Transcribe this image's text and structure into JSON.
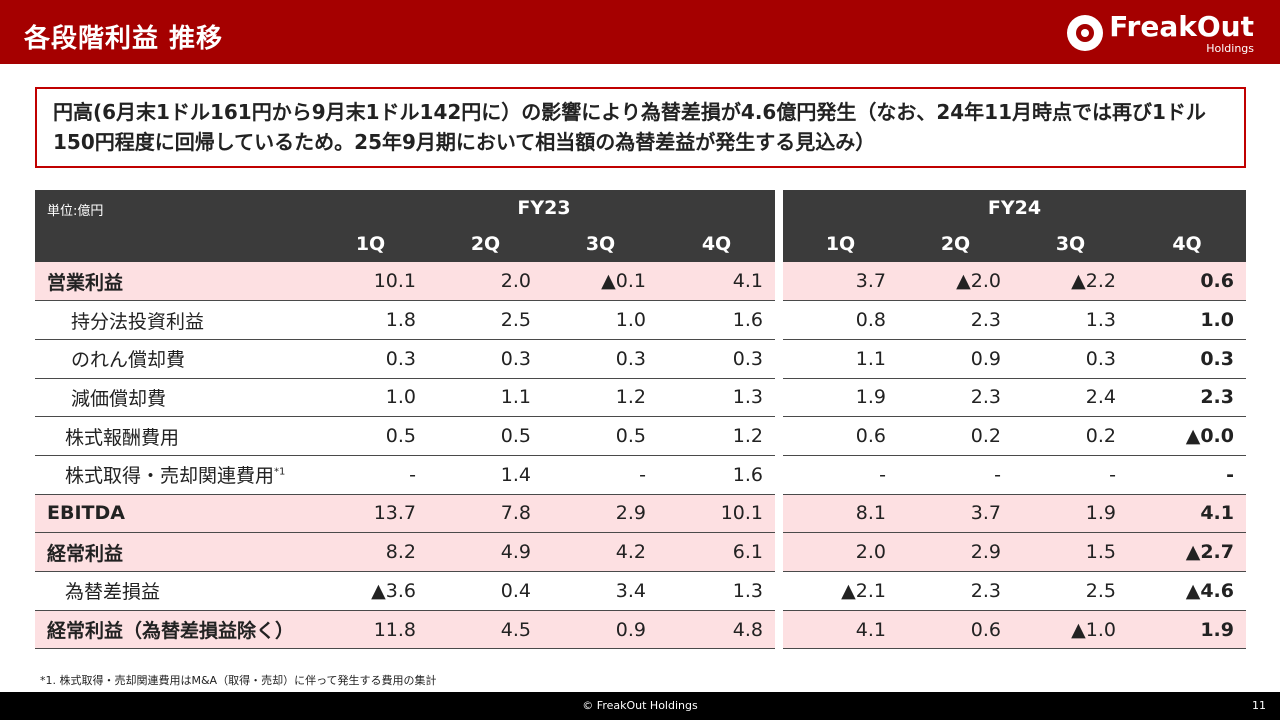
{
  "header": {
    "title": "各段階利益 推移"
  },
  "logo": {
    "name": "FreakOut",
    "sub": "Holdings"
  },
  "callout": {
    "text": "円高(6月末1ドル161円から9月末1ドル142円に）の影響により為替差損が4.6億円発生（なお、24年11月時点では再び1ドル150円程度に回帰しているため。25年9月期において相当額の為替差益が発生する見込み）"
  },
  "table": {
    "unit": "単位:億円",
    "fy23": "FY23",
    "fy24": "FY24",
    "quarters": [
      "1Q",
      "2Q",
      "3Q",
      "4Q"
    ],
    "rows": [
      {
        "label": "営業利益",
        "type": "main",
        "fy23": [
          "10.1",
          "2.0",
          "▲0.1",
          "4.1"
        ],
        "fy24": [
          "3.7",
          "▲2.0",
          "▲2.2",
          "0.6"
        ]
      },
      {
        "label": "持分法投資利益",
        "type": "sub",
        "fy23": [
          "1.8",
          "2.5",
          "1.0",
          "1.6"
        ],
        "fy24": [
          "0.8",
          "2.3",
          "1.3",
          "1.0"
        ]
      },
      {
        "label": "のれん償却費",
        "type": "sub",
        "fy23": [
          "0.3",
          "0.3",
          "0.3",
          "0.3"
        ],
        "fy24": [
          "1.1",
          "0.9",
          "0.3",
          "0.3"
        ]
      },
      {
        "label": "減価償却費",
        "type": "sub",
        "fy23": [
          "1.0",
          "1.1",
          "1.2",
          "1.3"
        ],
        "fy24": [
          "1.9",
          "2.3",
          "2.4",
          "2.3"
        ]
      },
      {
        "label": "株式報酬費用",
        "type": "sub2",
        "fy23": [
          "0.5",
          "0.5",
          "0.5",
          "1.2"
        ],
        "fy24": [
          "0.6",
          "0.2",
          "0.2",
          "▲0.0"
        ]
      },
      {
        "label": "株式取得・売却関連費用",
        "sup": "*1",
        "type": "sub2",
        "fy23": [
          "-",
          "1.4",
          "-",
          "1.6"
        ],
        "fy24": [
          "-",
          "-",
          "-",
          "-"
        ]
      },
      {
        "label": "EBITDA",
        "type": "main",
        "fy23": [
          "13.7",
          "7.8",
          "2.9",
          "10.1"
        ],
        "fy24": [
          "8.1",
          "3.7",
          "1.9",
          "4.1"
        ]
      },
      {
        "label": "経常利益",
        "type": "main",
        "fy23": [
          "8.2",
          "4.9",
          "4.2",
          "6.1"
        ],
        "fy24": [
          "2.0",
          "2.9",
          "1.5",
          "▲2.7"
        ]
      },
      {
        "label": "為替差損益",
        "type": "sub2",
        "fy23": [
          "▲3.6",
          "0.4",
          "3.4",
          "1.3"
        ],
        "fy24": [
          "▲2.1",
          "2.3",
          "2.5",
          "▲4.6"
        ]
      },
      {
        "label": "経常利益（為替差損益除く）",
        "type": "main",
        "fy23": [
          "11.8",
          "4.5",
          "0.9",
          "4.8"
        ],
        "fy24": [
          "4.1",
          "0.6",
          "▲1.0",
          "1.9"
        ]
      }
    ]
  },
  "footnote": "*1. 株式取得・売却関連費用はM&A（取得・売却）に伴って発生する費用の集計",
  "footer": {
    "copyright": "© FreakOut Holdings",
    "page": "11"
  }
}
